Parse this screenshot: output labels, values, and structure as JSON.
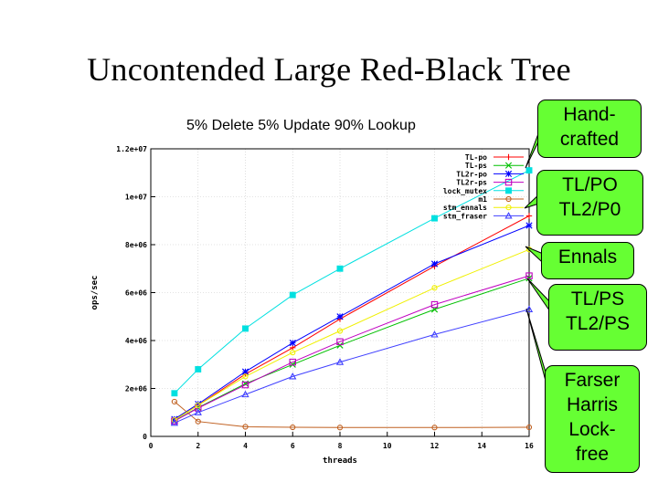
{
  "slide": {
    "title": "Uncontended Large Red-Black Tree",
    "subtitle": "5% Delete 5% Update 90% Lookup"
  },
  "callouts": [
    {
      "name": "callout-handcrafted",
      "lines": [
        "Hand-",
        "crafted"
      ]
    },
    {
      "name": "callout-tl-po",
      "lines": [
        "TL/PO",
        "TL2/P0"
      ]
    },
    {
      "name": "callout-ennals",
      "lines": [
        "Ennals"
      ]
    },
    {
      "name": "callout-tl-ps",
      "lines": [
        "TL/PS",
        "TL2/PS"
      ]
    },
    {
      "name": "callout-fraser",
      "lines": [
        "Farser",
        "Harris",
        "Lock-",
        "free"
      ]
    }
  ],
  "chart_data": {
    "type": "line",
    "title": "",
    "xlabel": "threads",
    "ylabel": "ops/sec",
    "xlim": [
      0,
      16
    ],
    "ylim": [
      0,
      12000000
    ],
    "x_ticks": [
      0,
      2,
      4,
      6,
      8,
      10,
      12,
      14,
      16
    ],
    "x_tick_labels": [
      "0",
      "2",
      "4",
      "6",
      "8",
      "10",
      "12",
      "14",
      "16"
    ],
    "y_ticks": [
      0,
      2000000,
      4000000,
      6000000,
      8000000,
      10000000,
      12000000
    ],
    "y_tick_labels": [
      "0",
      "2e+06",
      "4e+06",
      "6e+06",
      "8e+06",
      "1e+07",
      "1.2e+07"
    ],
    "legend_position": "top-right",
    "x": [
      1,
      2,
      4,
      6,
      8,
      12,
      16
    ],
    "series": [
      {
        "name": "TL-po",
        "color": "#ff0000",
        "marker": "plus",
        "values": [
          700000,
          1300000,
          2600000,
          3700000,
          4900000,
          7100000,
          9200000
        ]
      },
      {
        "name": "TL-ps",
        "color": "#00c000",
        "marker": "cross",
        "values": [
          650000,
          1200000,
          2200000,
          3000000,
          3800000,
          5300000,
          6600000
        ]
      },
      {
        "name": "TL2r-po",
        "color": "#0000ff",
        "marker": "star",
        "values": [
          720000,
          1350000,
          2700000,
          3900000,
          5000000,
          7200000,
          8800000
        ]
      },
      {
        "name": "TL2r-ps",
        "color": "#c000c0",
        "marker": "square-open",
        "values": [
          640000,
          1180000,
          2150000,
          3100000,
          3950000,
          5500000,
          6700000
        ]
      },
      {
        "name": "lock_mutex",
        "color": "#00e0e0",
        "marker": "square-filled",
        "values": [
          1800000,
          2800000,
          4500000,
          5900000,
          7000000,
          9100000,
          11100000
        ]
      },
      {
        "name": "m1",
        "color": "#c06020",
        "marker": "circle",
        "values": [
          1450000,
          620000,
          400000,
          380000,
          370000,
          370000,
          380000
        ]
      },
      {
        "name": "stm_ennals",
        "color": "#f0f000",
        "marker": "circle",
        "values": [
          680000,
          1300000,
          2500000,
          3500000,
          4400000,
          6200000,
          7800000
        ]
      },
      {
        "name": "stm_fraser",
        "color": "#4040ff",
        "marker": "triangle",
        "values": [
          560000,
          1000000,
          1750000,
          2500000,
          3100000,
          4250000,
          5300000
        ]
      }
    ]
  }
}
